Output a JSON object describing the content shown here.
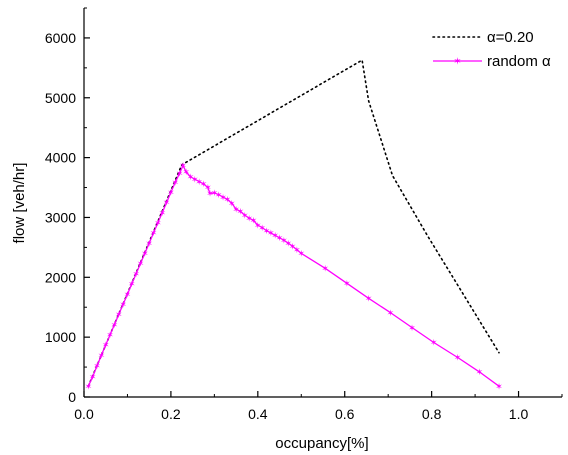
{
  "chart_data": {
    "type": "line",
    "xlabel": "occupancy[%]",
    "ylabel": "flow [veh/hr]",
    "xlim": [
      0.0,
      1.1
    ],
    "ylim": [
      0,
      6500
    ],
    "xticks": [
      0.0,
      0.2,
      0.4,
      0.6,
      0.8,
      1.0
    ],
    "xtick_labels": [
      "0.0",
      "0.2",
      "0.4",
      "0.6",
      "0.8",
      "1.0"
    ],
    "yticks": [
      0,
      1000,
      2000,
      3000,
      4000,
      5000,
      6000
    ],
    "ytick_labels": [
      "0",
      "1000",
      "2000",
      "3000",
      "4000",
      "5000",
      "6000"
    ],
    "grid": false,
    "legend_position": "top-right",
    "series": [
      {
        "name": "α=0.20",
        "color": "#000000",
        "style": "dotted",
        "marker": "none",
        "points": [
          [
            0.01,
            180
          ],
          [
            0.225,
            3880
          ],
          [
            0.64,
            5630
          ],
          [
            0.655,
            4950
          ],
          [
            0.71,
            3700
          ],
          [
            0.79,
            2700
          ],
          [
            0.87,
            1750
          ],
          [
            0.955,
            740
          ]
        ]
      },
      {
        "name": "random α",
        "color": "#ff00ff",
        "style": "solid",
        "marker": "star",
        "points": [
          [
            0.01,
            180
          ],
          [
            0.02,
            340
          ],
          [
            0.03,
            520
          ],
          [
            0.04,
            700
          ],
          [
            0.05,
            870
          ],
          [
            0.06,
            1040
          ],
          [
            0.07,
            1210
          ],
          [
            0.08,
            1380
          ],
          [
            0.09,
            1550
          ],
          [
            0.1,
            1720
          ],
          [
            0.11,
            1890
          ],
          [
            0.12,
            2060
          ],
          [
            0.13,
            2230
          ],
          [
            0.14,
            2400
          ],
          [
            0.15,
            2570
          ],
          [
            0.16,
            2740
          ],
          [
            0.17,
            2910
          ],
          [
            0.18,
            3080
          ],
          [
            0.19,
            3250
          ],
          [
            0.2,
            3420
          ],
          [
            0.21,
            3590
          ],
          [
            0.22,
            3740
          ],
          [
            0.228,
            3870
          ],
          [
            0.235,
            3760
          ],
          [
            0.245,
            3680
          ],
          [
            0.255,
            3640
          ],
          [
            0.265,
            3600
          ],
          [
            0.275,
            3560
          ],
          [
            0.285,
            3500
          ],
          [
            0.29,
            3400
          ],
          [
            0.3,
            3410
          ],
          [
            0.31,
            3380
          ],
          [
            0.32,
            3340
          ],
          [
            0.33,
            3300
          ],
          [
            0.34,
            3240
          ],
          [
            0.35,
            3140
          ],
          [
            0.36,
            3100
          ],
          [
            0.37,
            3040
          ],
          [
            0.38,
            2990
          ],
          [
            0.39,
            2950
          ],
          [
            0.4,
            2870
          ],
          [
            0.41,
            2830
          ],
          [
            0.42,
            2780
          ],
          [
            0.43,
            2740
          ],
          [
            0.44,
            2700
          ],
          [
            0.45,
            2660
          ],
          [
            0.46,
            2620
          ],
          [
            0.47,
            2570
          ],
          [
            0.48,
            2520
          ],
          [
            0.49,
            2460
          ],
          [
            0.5,
            2400
          ],
          [
            0.555,
            2150
          ],
          [
            0.605,
            1900
          ],
          [
            0.655,
            1650
          ],
          [
            0.705,
            1410
          ],
          [
            0.755,
            1160
          ],
          [
            0.805,
            910
          ],
          [
            0.86,
            660
          ],
          [
            0.91,
            420
          ],
          [
            0.955,
            180
          ]
        ]
      }
    ]
  }
}
